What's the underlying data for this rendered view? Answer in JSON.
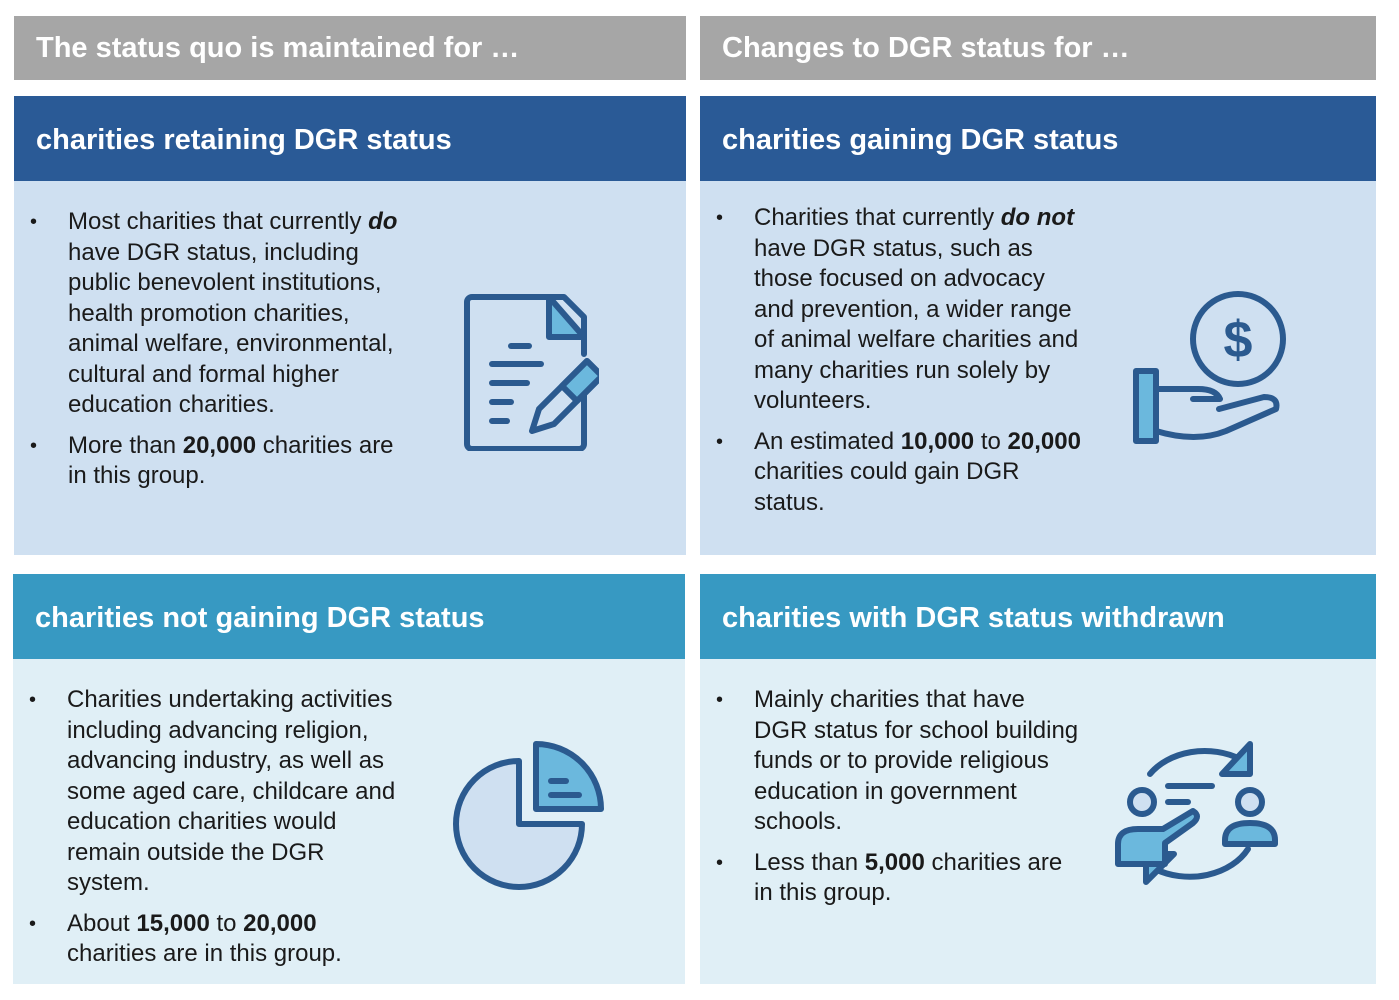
{
  "columns": [
    {
      "heading": "The status quo is maintained for …"
    },
    {
      "heading": "Changes to DGR status for …"
    }
  ],
  "panels": [
    {
      "title": "charities retaining DGR status",
      "icon": "document-edit-icon",
      "bullets": [
        [
          {
            "t": "Most charities that currently "
          },
          {
            "t": "do",
            "b": true,
            "i": true
          },
          {
            "t": " have DGR status, including public benevolent institutions, health promotion charities, animal welfare, environmental, cultural and formal higher education charities."
          }
        ],
        [
          {
            "t": "More than "
          },
          {
            "t": "20,000",
            "b": true
          },
          {
            "t": " charities are in this group."
          }
        ]
      ]
    },
    {
      "title": "charities gaining DGR status",
      "icon": "hand-dollar-icon",
      "bullets": [
        [
          {
            "t": "Charities that currently "
          },
          {
            "t": "do not",
            "b": true,
            "i": true
          },
          {
            "t": " have DGR status, such as those focused on advocacy and prevention, a wider range of animal welfare charities and many charities run solely by volunteers."
          }
        ],
        [
          {
            "t": "An estimated "
          },
          {
            "t": "10,000",
            "b": true
          },
          {
            "t": " to "
          },
          {
            "t": "20,000",
            "b": true
          },
          {
            "t": " charities could gain DGR status."
          }
        ]
      ]
    },
    {
      "title": "charities not gaining DGR status",
      "icon": "pie-chart-icon",
      "bullets": [
        [
          {
            "t": "Charities undertaking activities including advancing religion, advancing industry, as well as some aged care, childcare and education charities would remain outside the DGR system."
          }
        ],
        [
          {
            "t": "About "
          },
          {
            "t": "15,000",
            "b": true
          },
          {
            "t": " to "
          },
          {
            "t": "20,000",
            "b": true
          },
          {
            "t": " charities are in this group."
          }
        ]
      ]
    },
    {
      "title": "charities with DGR status withdrawn",
      "icon": "people-exchange-icon",
      "bullets": [
        [
          {
            "t": "Mainly charities that have DGR status for school building funds or to provide religious education in government schools."
          }
        ],
        [
          {
            "t": "Less than "
          },
          {
            "t": "5,000",
            "b": true
          },
          {
            "t": " charities are in this group."
          }
        ]
      ]
    }
  ],
  "colors": {
    "header_gray": "#a6a6a6",
    "dark_blue": "#2a5a96",
    "light_blue": "#cfe0f1",
    "teal": "#3799c2",
    "pale_teal": "#e0eff6",
    "icon_stroke": "#2b5a8f",
    "icon_fill": "#6bb8dd"
  }
}
